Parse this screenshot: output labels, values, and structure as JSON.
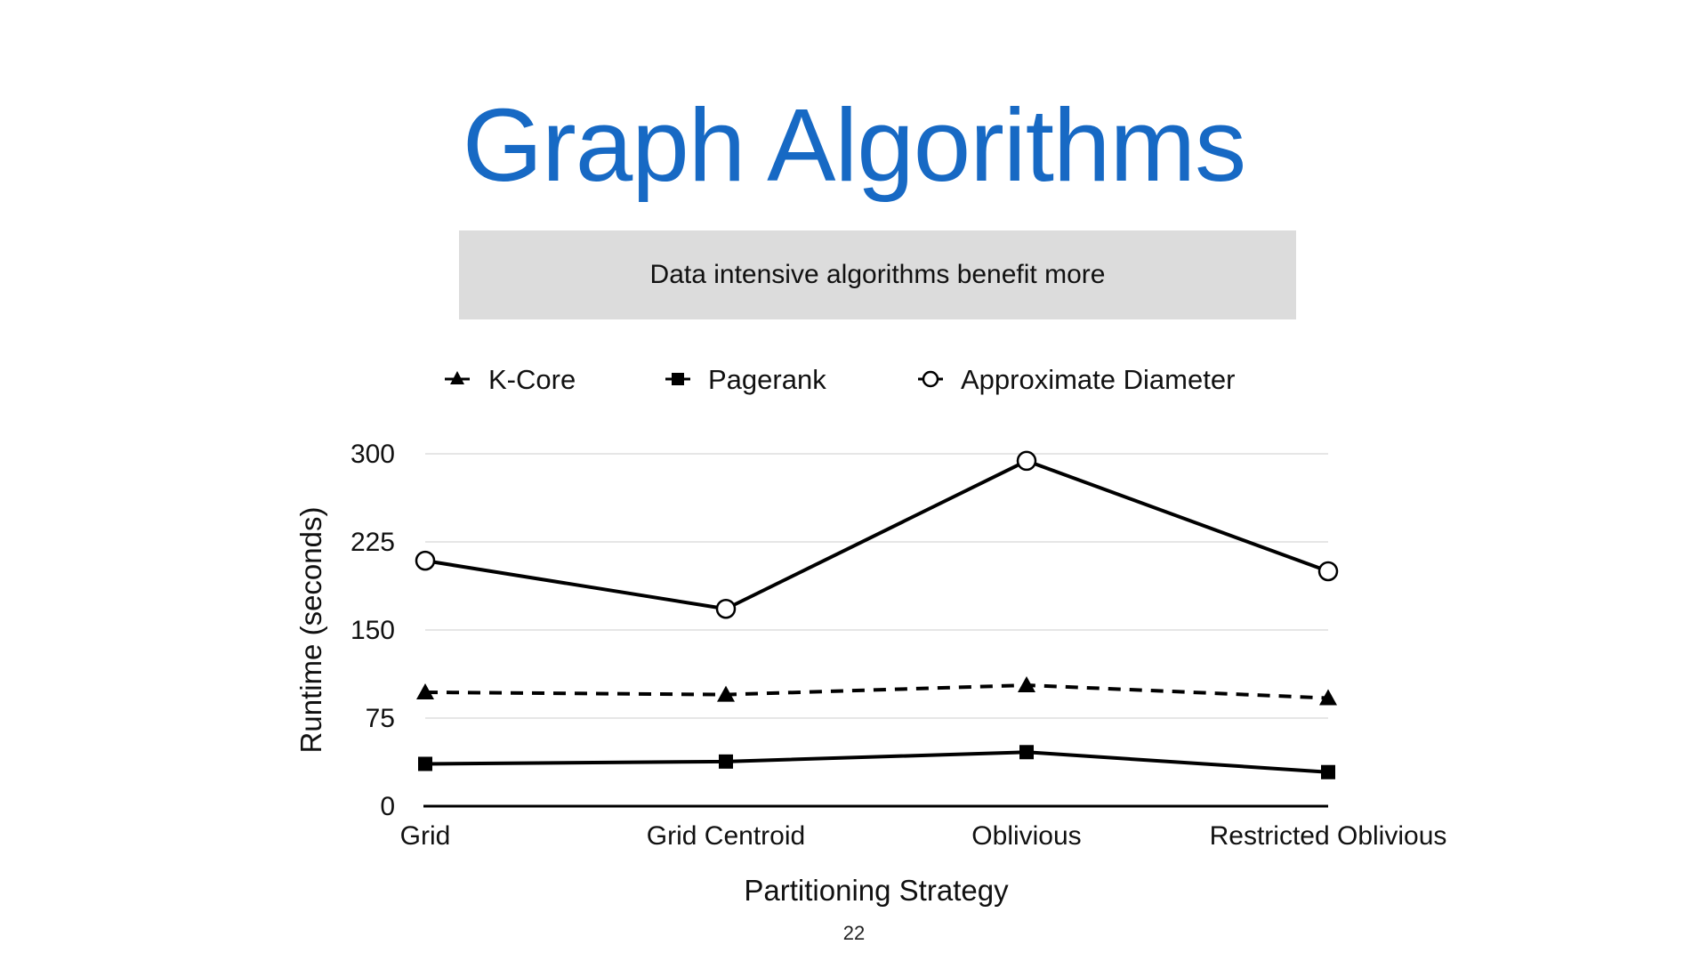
{
  "slide": {
    "title": "Graph Algorithms",
    "subtitle": "Data intensive algorithms benefit more",
    "page_number": "22"
  },
  "chart_data": {
    "type": "line",
    "categories": [
      "Grid",
      "Grid Centroid",
      "Oblivious",
      "Restricted Oblivious"
    ],
    "series": [
      {
        "name": "K-Core",
        "values": [
          97,
          95,
          103,
          92
        ],
        "marker": "triangle",
        "line_style": "dashed"
      },
      {
        "name": "Pagerank",
        "values": [
          36,
          38,
          46,
          29
        ],
        "marker": "square",
        "line_style": "solid"
      },
      {
        "name": "Approximate Diameter",
        "values": [
          209,
          168,
          294,
          200
        ],
        "marker": "open-circle",
        "line_style": "solid"
      }
    ],
    "xlabel": "Partitioning Strategy",
    "ylabel": "Runtime (seconds)",
    "ylim": [
      0,
      300
    ],
    "yticks": [
      0,
      75,
      150,
      225,
      300
    ],
    "grid": "horizontal",
    "legend_position": "top",
    "colors": {
      "line": "#000000",
      "grid": "#dddddd",
      "axis": "#000000"
    }
  }
}
